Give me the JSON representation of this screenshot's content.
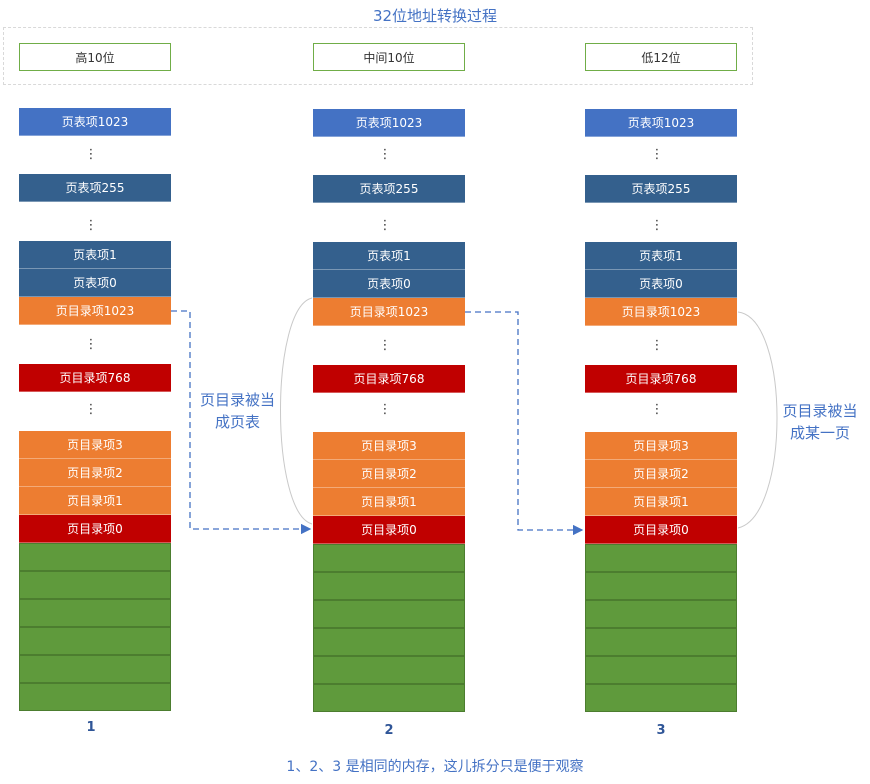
{
  "title": "32位地址转换过程",
  "headers": [
    "高10位",
    "中间10位",
    "低12位"
  ],
  "columns": [
    {
      "label": "1"
    },
    {
      "label": "2"
    },
    {
      "label": "3"
    }
  ],
  "entries": {
    "pte1023": "页表项1023",
    "pte255": "页表项255",
    "pte1": "页表项1",
    "pte0": "页表项0",
    "pde1023": "页目录项1023",
    "pde768": "页目录项768",
    "pde3": "页目录项3",
    "pde2": "页目录项2",
    "pde1": "页目录项1",
    "pde0": "页目录项0",
    "ellipsis": "⋮"
  },
  "notes": {
    "as_page_table": "页目录被当\n成页表",
    "as_page": "页目录被当\n成某一页"
  },
  "footer": "1、2、3 是相同的内存，这儿拆分只是便于观察",
  "colors": {
    "accent": "#4472c4",
    "pte_top": "#4472c4",
    "pte": "#34608d",
    "pde": "#ed7d31",
    "pde_highlight": "#c00000",
    "page": "#5f9a3c"
  }
}
